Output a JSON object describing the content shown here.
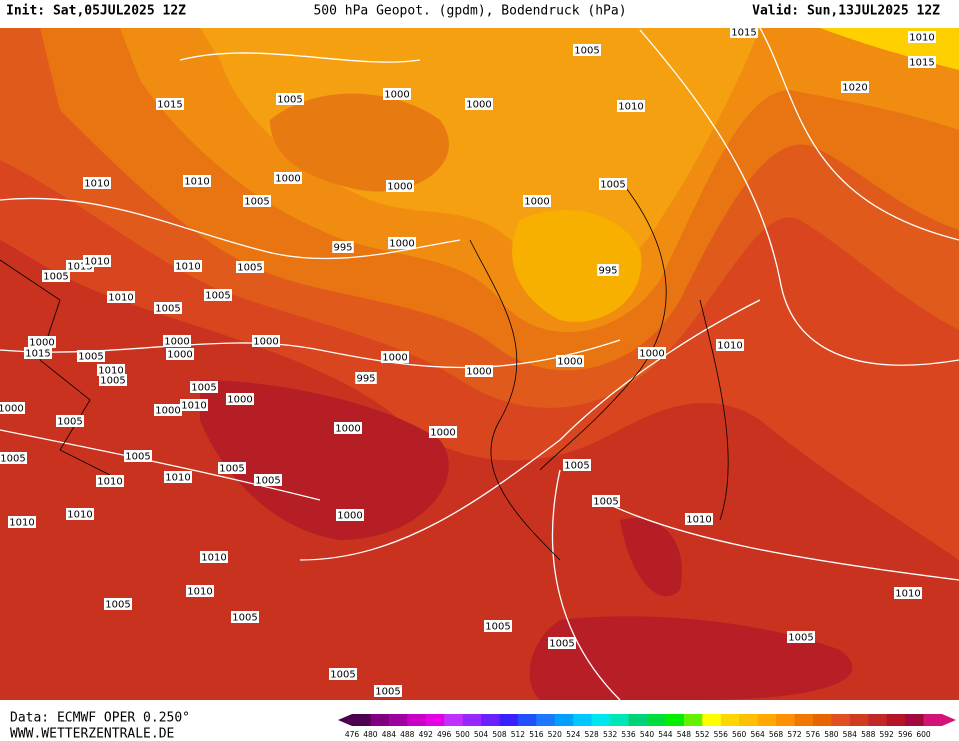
{
  "header": {
    "init": "Init: Sat,05JUL2025 12Z",
    "title": "500 hPa Geopot. (gpdm), Bodendruck (hPa)",
    "valid": "Valid: Sun,13JUL2025 12Z"
  },
  "footer": {
    "source": "Data: ECMWF OPER 0.250°",
    "website": "WWW.WETTERZENTRALE.DE"
  },
  "isobar_labels": [
    "1015",
    "1005",
    "1000",
    "1000",
    "1005",
    "1010",
    "1015",
    "1010",
    "1015",
    "1020",
    "1010",
    "1010",
    "1000",
    "1000",
    "1005",
    "1005",
    "1000",
    "995",
    "1000",
    "1015",
    "1010",
    "1005",
    "1010",
    "1005",
    "995",
    "1010",
    "1005",
    "1005",
    "1000",
    "1015",
    "1005",
    "1000",
    "1000",
    "1000",
    "1000",
    "1010",
    "1000",
    "995",
    "1000",
    "1000",
    "1010",
    "1005",
    "1005",
    "1000",
    "1010",
    "1000",
    "1000",
    "1005",
    "1000",
    "1000",
    "1005",
    "1005",
    "1005",
    "1005",
    "1010",
    "1010",
    "1005",
    "1005",
    "1010",
    "1010",
    "1000",
    "1010",
    "1010",
    "1010",
    "1005",
    "1010",
    "1005",
    "1005",
    "1005",
    "1005",
    "1005",
    "1005"
  ],
  "colorbar": {
    "labels": [
      476,
      480,
      484,
      488,
      492,
      496,
      500,
      504,
      508,
      512,
      516,
      520,
      524,
      528,
      532,
      536,
      540,
      544,
      548,
      552,
      556,
      560,
      564,
      568,
      572,
      576,
      580,
      584,
      588,
      592,
      596,
      600
    ],
    "colors": [
      "#4b0050",
      "#80007f",
      "#a000a0",
      "#c800c8",
      "#e600e6",
      "#c030ff",
      "#9628ff",
      "#6a20ff",
      "#3a20ff",
      "#2050ff",
      "#1e78ff",
      "#00a0ff",
      "#00c8ff",
      "#00e6f0",
      "#00e6b4",
      "#00d278",
      "#00dc3c",
      "#00f000",
      "#64f000",
      "#ffff00",
      "#ffd700",
      "#ffc000",
      "#ffa800",
      "#ff9000",
      "#f07800",
      "#e86400",
      "#e05020",
      "#d03c20",
      "#c02828",
      "#b41428",
      "#a00a3c",
      "#d21478"
    ]
  }
}
